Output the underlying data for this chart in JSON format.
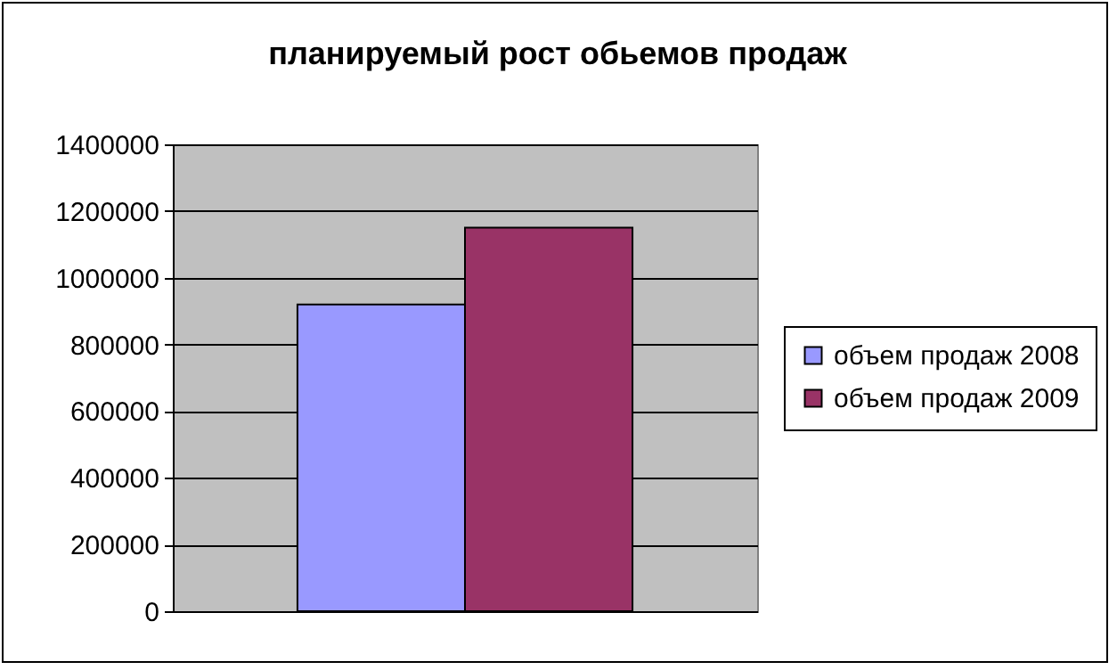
{
  "chart_data": {
    "type": "bar",
    "title": "планируемый рост обьемов продаж",
    "categories": [
      null
    ],
    "series": [
      {
        "name": "объем продаж 2008",
        "color": "#9999ff",
        "values": [
          920000
        ]
      },
      {
        "name": "объем продаж 2009",
        "color": "#993366",
        "values": [
          1150000
        ]
      }
    ],
    "ylim": [
      0,
      1400000
    ],
    "yticks": [
      0,
      200000,
      400000,
      600000,
      800000,
      1000000,
      1200000,
      1400000
    ],
    "grid": "y",
    "legend": "right"
  }
}
